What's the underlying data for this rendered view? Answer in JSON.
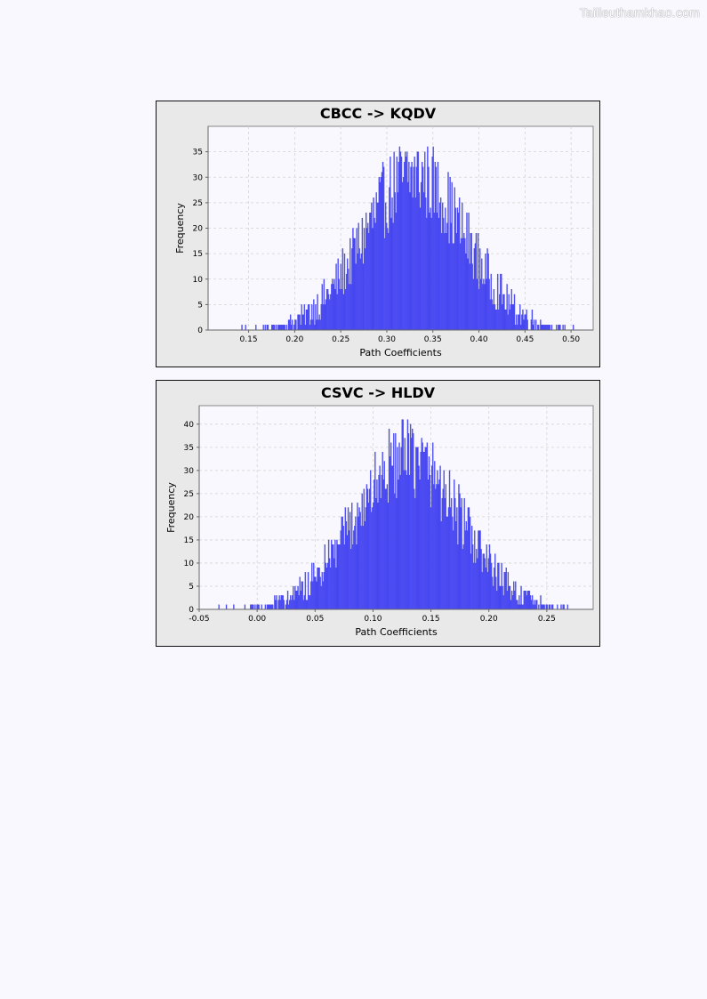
{
  "watermark": "Tailieuthamkhao.com",
  "colors": {
    "bar": "#5555ff",
    "bar_edge": "#2a2ad4",
    "plot_bg": "#f8f8fe",
    "panel_bg": "#e9e9e9",
    "grid": "#d4d4d4"
  },
  "chart_data": [
    {
      "type": "bar",
      "title": "CBCC -> KQDV",
      "xlabel": "Path Coefficients",
      "ylabel": "Frequency",
      "xlim": [
        0.106,
        0.524
      ],
      "ylim": [
        0,
        40
      ],
      "xticks": [
        "0.15",
        "0.20",
        "0.25",
        "0.30",
        "0.35",
        "0.40",
        "0.45",
        "0.50"
      ],
      "yticks": [
        "0",
        "5",
        "10",
        "15",
        "20",
        "25",
        "30",
        "35"
      ],
      "distribution": {
        "mean": 0.33,
        "sd": 0.055,
        "peak_frequency": 38,
        "min": 0.125,
        "max": 0.51
      },
      "grid": true,
      "legend": "none"
    },
    {
      "type": "bar",
      "title": "CSVC -> HLDV",
      "xlabel": "Path Coefficients",
      "ylabel": "Frequency",
      "xlim": [
        -0.05,
        0.29
      ],
      "ylim": [
        0,
        44
      ],
      "xticks": [
        "-0.05",
        "0.00",
        "0.05",
        "0.10",
        "0.15",
        "0.20",
        "0.25"
      ],
      "yticks": [
        "0",
        "5",
        "10",
        "15",
        "20",
        "25",
        "30",
        "35",
        "40"
      ],
      "distribution": {
        "mean": 0.13,
        "sd": 0.045,
        "peak_frequency": 41,
        "min": -0.035,
        "max": 0.27
      },
      "grid": true,
      "legend": "none"
    }
  ]
}
